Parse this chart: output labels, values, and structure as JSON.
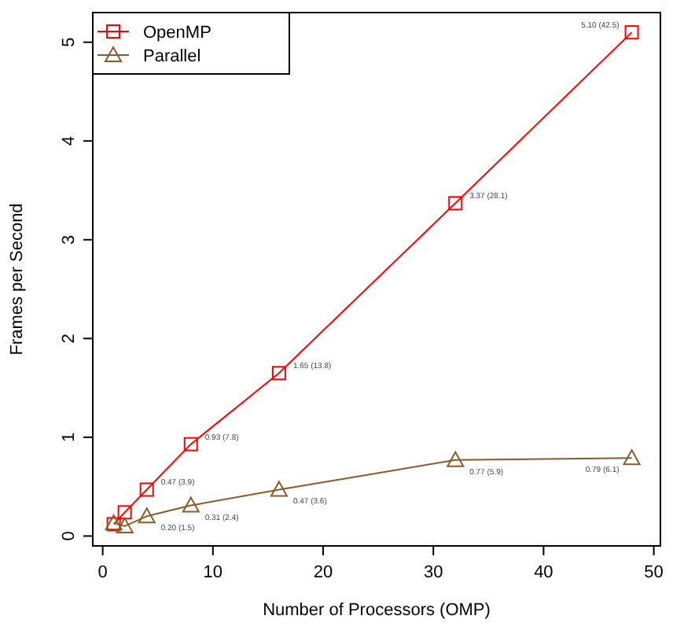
{
  "chart_data": {
    "type": "line",
    "xlabel": "Number of Processors (OMP)",
    "ylabel": "Frames per Second",
    "xlim": [
      -0.9,
      50.6
    ],
    "xticks": [
      0,
      10,
      20,
      30,
      40,
      50
    ],
    "ylim": [
      -0.1,
      5.3
    ],
    "yticks": [
      0,
      1,
      2,
      3,
      4,
      5
    ],
    "legend": "top left",
    "grid": false,
    "line_style": "solid",
    "series": [
      {
        "name": "OpenMP",
        "color": "#ff0000",
        "marker": "square",
        "x": [
          1,
          2,
          4,
          8,
          16,
          32,
          48
        ],
        "values": [
          0.12,
          0.24,
          0.47,
          0.93,
          1.65,
          3.37,
          5.1
        ],
        "value_labels": [
          null,
          null,
          "0.47 (3.9)",
          "0.93 (7.8)",
          "1.65 (13.8)",
          "3.37 (28.1)",
          "5.10 (42.5)"
        ]
      },
      {
        "name": "Parallel",
        "color": "#8b5a2b",
        "marker": "triangle",
        "x": [
          1,
          2,
          4,
          8,
          16,
          32,
          48
        ],
        "values": [
          0.13,
          0.1,
          0.2,
          0.31,
          0.47,
          0.77,
          0.79
        ],
        "value_labels": [
          null,
          null,
          "0.20 (1.5)",
          "0.31 (2.4)",
          "0.47 (3.6)",
          "0.77 (5.9)",
          "0.79 (6.1)"
        ]
      }
    ]
  }
}
